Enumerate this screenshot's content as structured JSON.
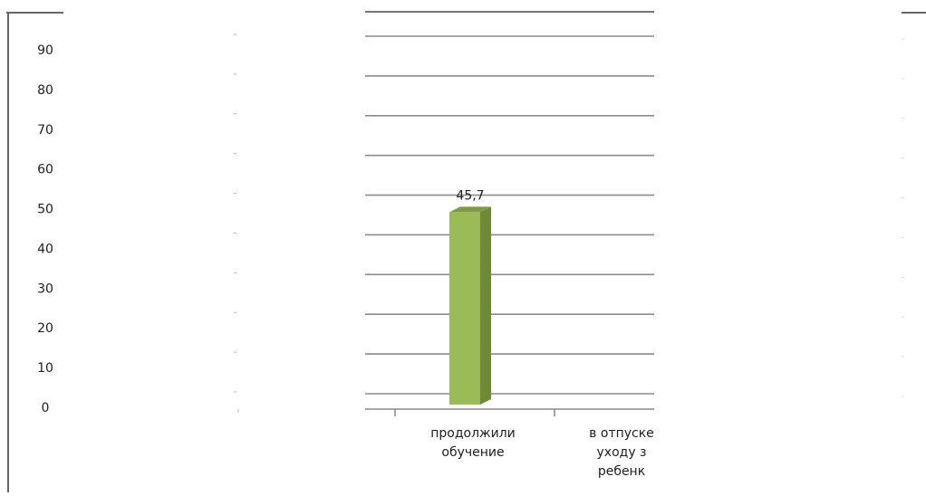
{
  "chart_data": {
    "type": "bar",
    "categories": [
      "продолжили обучение",
      "в отпуске по уходу за ребенком"
    ],
    "category_label_lines": [
      [
        "продолжили",
        "обучение"
      ],
      [
        "в отпуске",
        "уходу з",
        "ребенк"
      ]
    ],
    "values": [
      45.7,
      null
    ],
    "data_labels": [
      "45,7",
      ""
    ],
    "yticks": [
      "0",
      "10",
      "20",
      "30",
      "40",
      "50",
      "60",
      "70",
      "80",
      "90"
    ],
    "ylim": [
      0,
      90
    ],
    "grid": true,
    "legend": "none",
    "title": "",
    "xlabel": "",
    "ylabel": "",
    "colors": {
      "bar_front": "#9bbb59",
      "bar_side": "#6e8a36",
      "bar_top": "#7f9a46",
      "grid": "#8c8c8c",
      "text": "#222222"
    }
  }
}
